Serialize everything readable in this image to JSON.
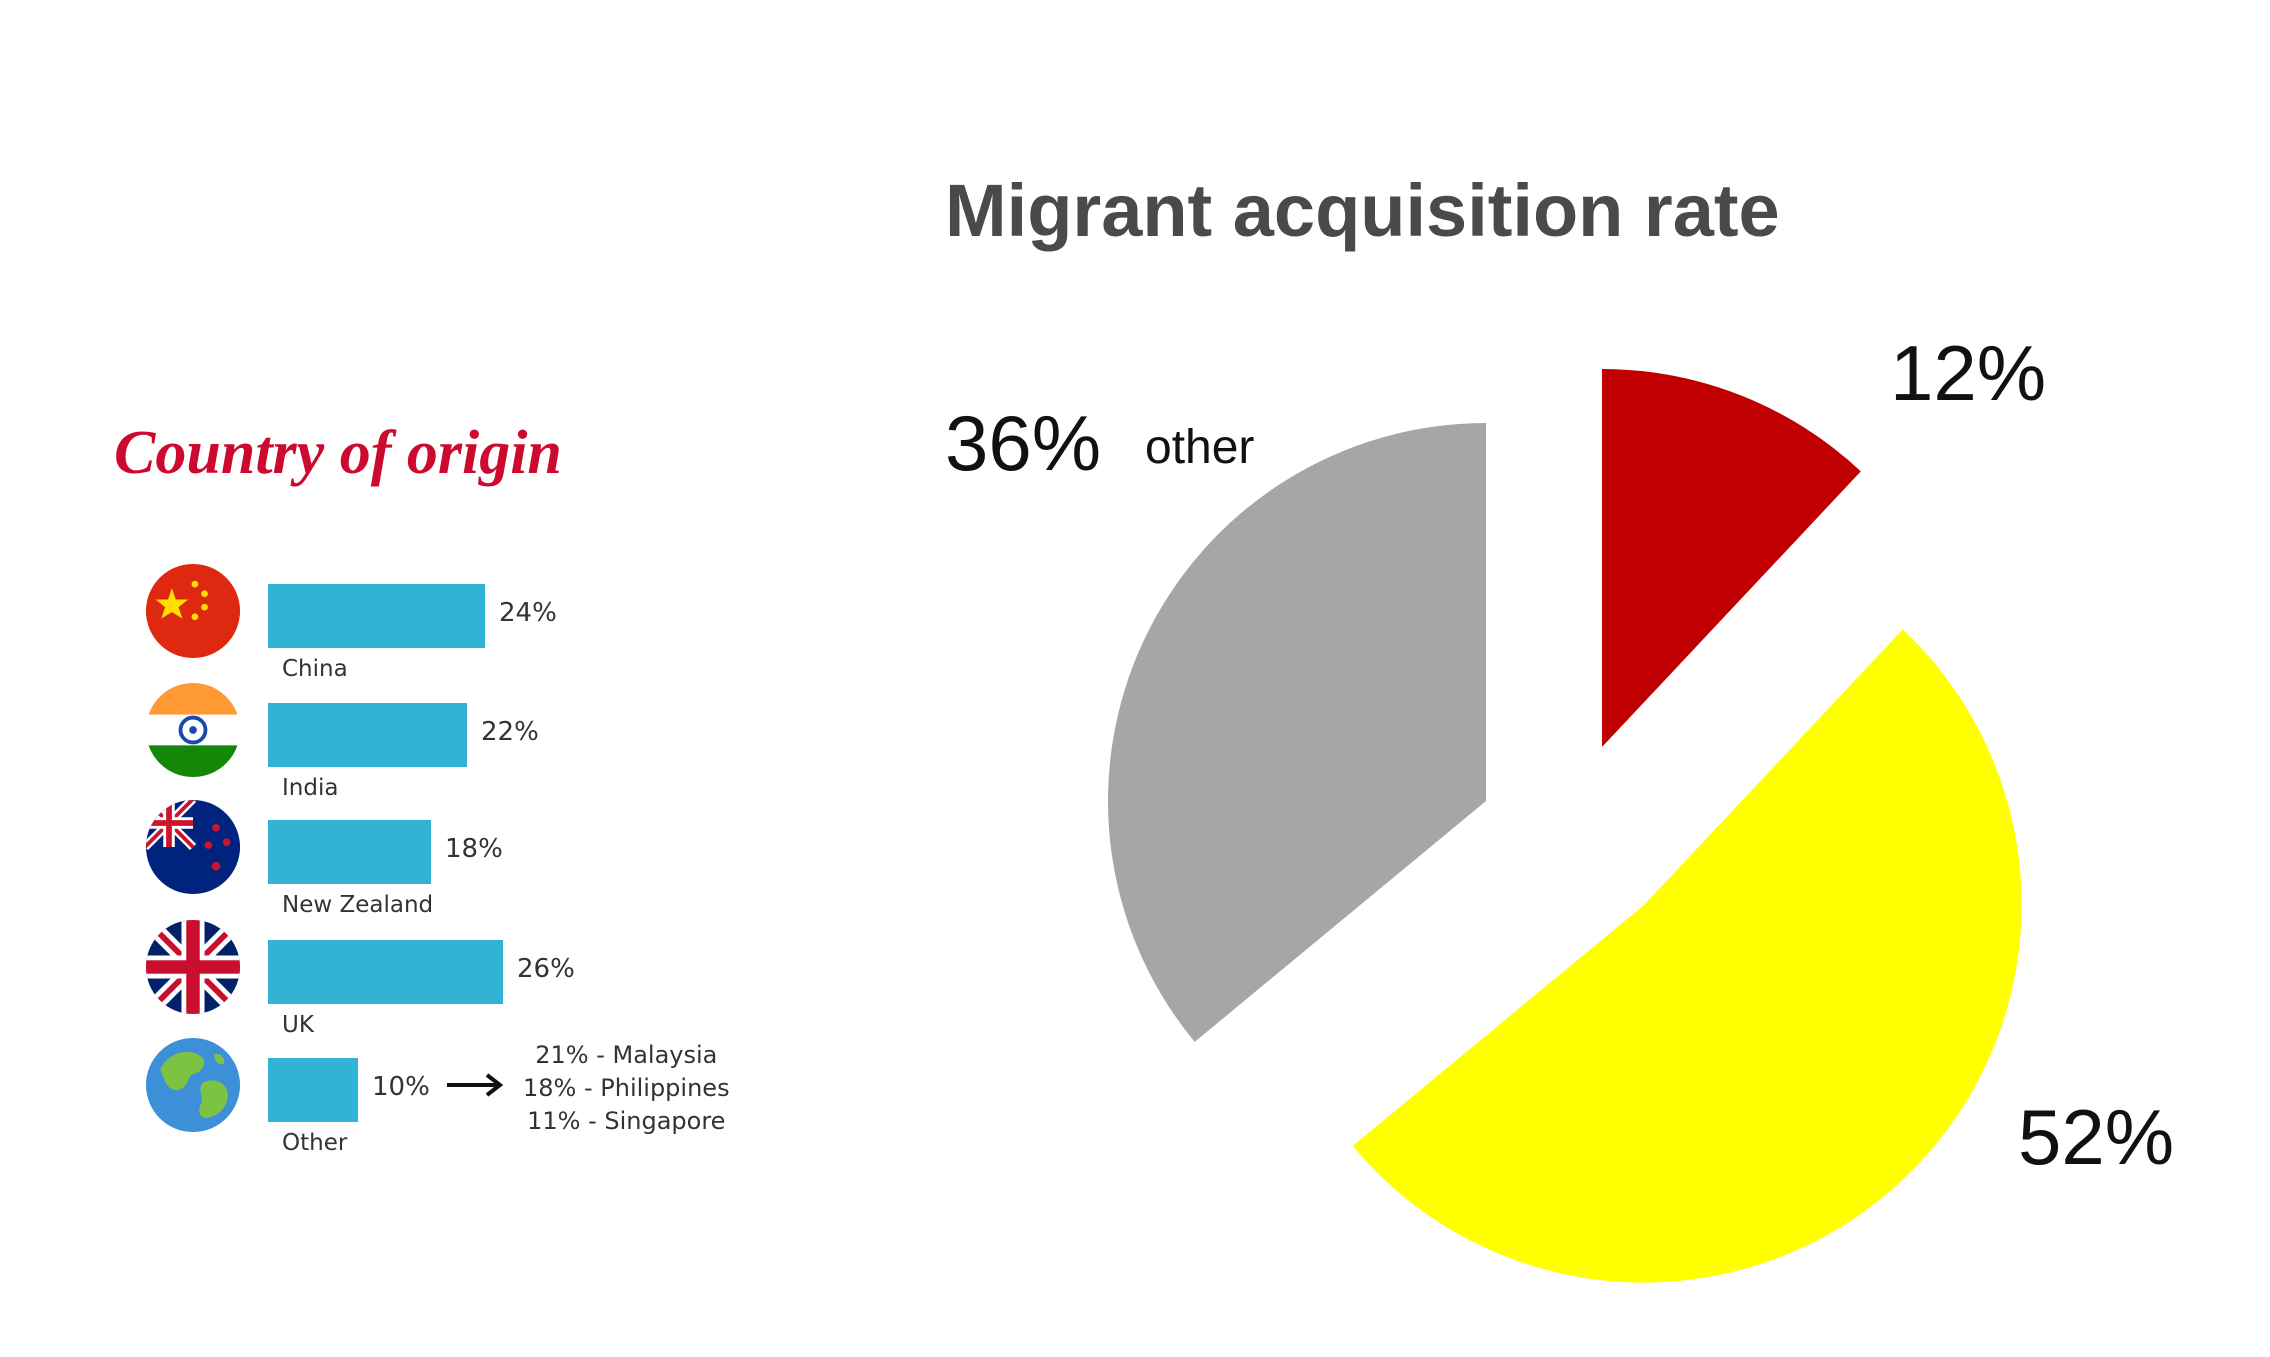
{
  "left": {
    "title": "Country of origin",
    "rows": [
      {
        "name": "China",
        "pct_label": "24%",
        "value": 24,
        "flag": "china-flag"
      },
      {
        "name": "India",
        "pct_label": "22%",
        "value": 22,
        "flag": "india-flag"
      },
      {
        "name": "New Zealand",
        "pct_label": "18%",
        "value": 18,
        "flag": "new-zealand-flag"
      },
      {
        "name": "UK",
        "pct_label": "26%",
        "value": 26,
        "flag": "uk-flag"
      },
      {
        "name": "Other",
        "pct_label": "10%",
        "value": 10,
        "flag": "globe-icon"
      }
    ],
    "other_breakdown": [
      "21% - Malaysia",
      "18%  - Philippines",
      "11% - Singapore"
    ]
  },
  "right": {
    "title": "Migrant acquisition rate",
    "other_label": "other"
  },
  "chart_data": [
    {
      "type": "bar",
      "title": "Country of origin",
      "categories": [
        "China",
        "India",
        "New Zealand",
        "UK",
        "Other"
      ],
      "values": [
        24,
        22,
        18,
        26,
        10
      ],
      "unit": "%"
    },
    {
      "type": "pie",
      "title": "Migrant acquisition rate",
      "slices": [
        {
          "label": "12%",
          "value": 12,
          "color": "#c00000"
        },
        {
          "label": "52%",
          "value": 52,
          "color": "#ffff00"
        },
        {
          "label": "36%",
          "name": "other",
          "value": 36,
          "color": "#a6a6a6"
        }
      ]
    }
  ],
  "colors": {
    "bar": "#32b2d5",
    "title_red": "#cc0a2f",
    "title_gray": "#4a4a4a"
  }
}
